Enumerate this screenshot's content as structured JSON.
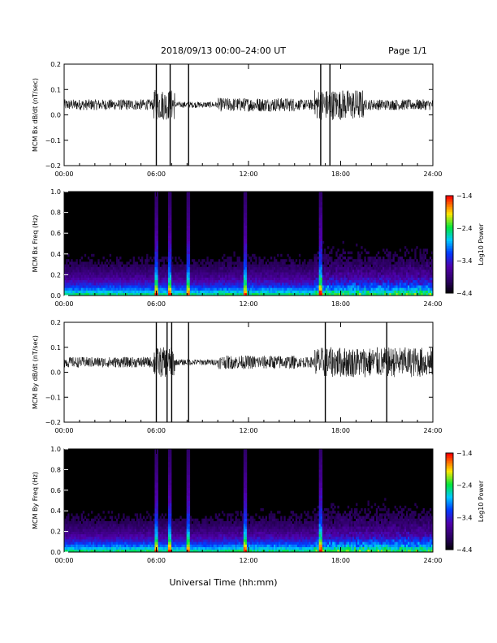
{
  "header": {
    "title": "2018/09/13  00:00–24:00 UT",
    "page": "Page 1/1"
  },
  "xlabel": "Universal Time (hh:mm)",
  "xticks": [
    "00:00",
    "06:00",
    "12:00",
    "18:00",
    "24:00"
  ],
  "chart_data": [
    {
      "type": "line",
      "ylabel": "MCM Bx dB/dt (nT/sec)",
      "xlim": [
        0,
        24
      ],
      "ylim": [
        -0.2,
        0.2
      ],
      "yticks": [
        "0.2",
        "0.1",
        "0.0",
        "−0.1",
        "−0.2"
      ],
      "baseline": 0.04,
      "spikes_hours": [
        6.0,
        6.9,
        8.1,
        16.7,
        17.3
      ],
      "active_hours": [
        [
          5.8,
          7.2
        ],
        [
          16.3,
          19.5
        ]
      ],
      "series": [
        {
          "values_note": "black trace"
        }
      ]
    },
    {
      "type": "heatmap",
      "ylabel": "MCM Bx Freq (Hz)",
      "xlim": [
        0,
        24
      ],
      "ylim": [
        0.0,
        1.0
      ],
      "yticks": [
        "1.0",
        "0.8",
        "0.6",
        "0.4",
        "0.2",
        "0.0"
      ],
      "colorbar": {
        "label": "Log10 Power",
        "ticks": [
          "−1.4",
          "−2.4",
          "−3.4",
          "−4.4"
        ],
        "range": [
          -4.4,
          -1.4
        ]
      },
      "bright_lines_hours": [
        6.0,
        6.9,
        8.1,
        11.8,
        16.7
      ]
    },
    {
      "type": "line",
      "ylabel": "MCM By dB/dt (nT/sec)",
      "xlim": [
        0,
        24
      ],
      "ylim": [
        -0.2,
        0.2
      ],
      "yticks": [
        "0.2",
        "0.1",
        "0.0",
        "−0.1",
        "−0.2"
      ],
      "baseline": 0.04,
      "spikes_hours": [
        6.0,
        6.7,
        7.0,
        8.1,
        17.0,
        21.0
      ],
      "active_hours": [
        [
          5.8,
          7.2
        ],
        [
          16.3,
          24.0
        ]
      ]
    },
    {
      "type": "heatmap",
      "ylabel": "MCM By Freq (Hz)",
      "xlim": [
        0,
        24
      ],
      "ylim": [
        0.0,
        1.0
      ],
      "yticks": [
        "1.0",
        "0.8",
        "0.6",
        "0.4",
        "0.2",
        "0.0"
      ],
      "colorbar": {
        "label": "Log10 Power",
        "ticks": [
          "−1.4",
          "−2.4",
          "−3.4",
          "−4.4"
        ],
        "range": [
          -4.4,
          -1.4
        ]
      },
      "bright_lines_hours": [
        6.0,
        6.9,
        8.1,
        11.8,
        16.7
      ]
    }
  ]
}
